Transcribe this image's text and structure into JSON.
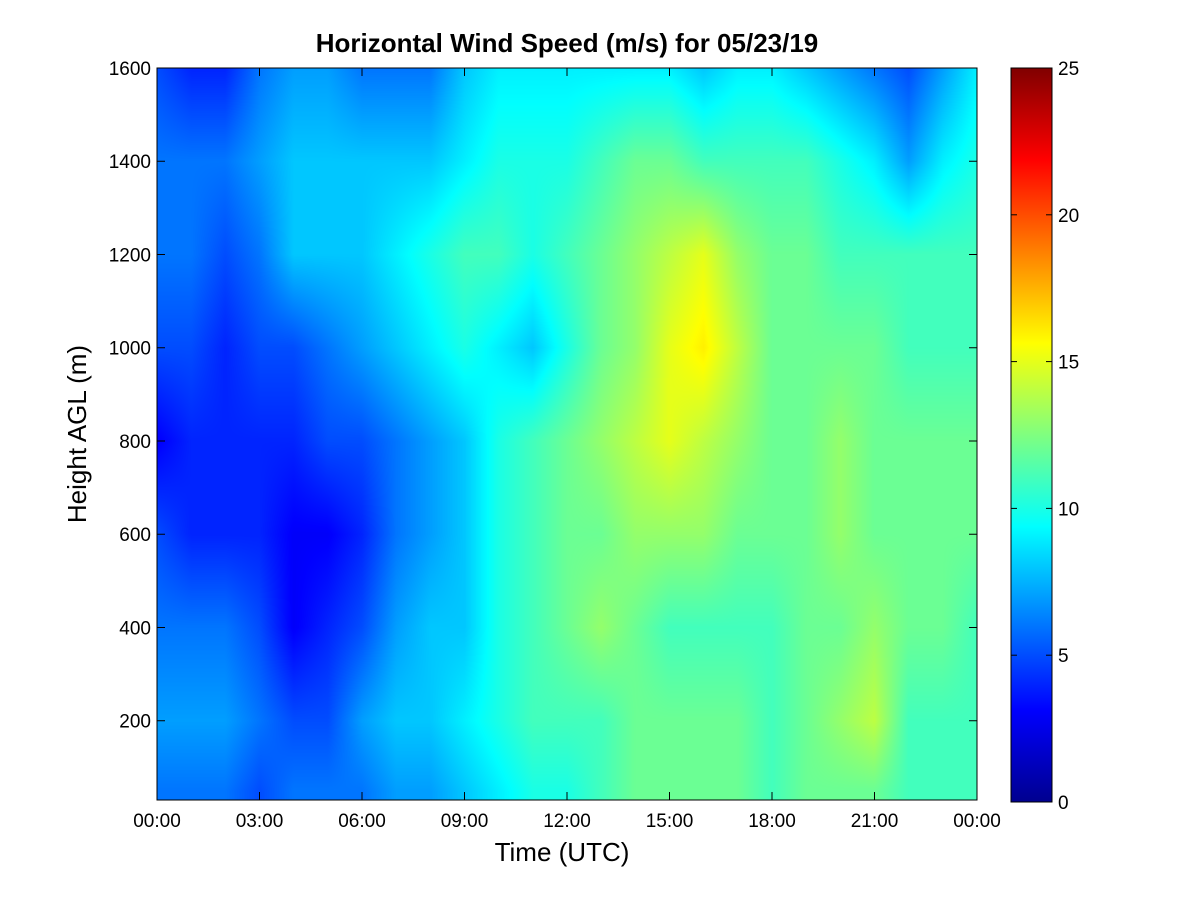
{
  "chart_data": {
    "type": "heatmap",
    "title": "Horizontal Wind Speed (m/s) for 05/23/19",
    "xlabel": "Time (UTC)",
    "ylabel": "Height AGL (m)",
    "x_ticks": [
      "00:00",
      "03:00",
      "06:00",
      "09:00",
      "12:00",
      "15:00",
      "18:00",
      "21:00",
      "00:00"
    ],
    "x_tick_hours": [
      0,
      3,
      6,
      9,
      12,
      15,
      18,
      21,
      24
    ],
    "xlim_hours": [
      0,
      24
    ],
    "y_ticks": [
      200,
      400,
      600,
      800,
      1000,
      1200,
      1400,
      1600
    ],
    "ylim": [
      30,
      1600
    ],
    "colorbar": {
      "colormap": "jet",
      "range": [
        0,
        25
      ],
      "ticks": [
        0,
        5,
        10,
        15,
        20,
        25
      ],
      "tick_labels": [
        "0",
        "5",
        "10",
        "15",
        "20",
        "25"
      ]
    },
    "grid": false,
    "time_hours": [
      0,
      1,
      2,
      3,
      4,
      5,
      6,
      7,
      8,
      9,
      10,
      11,
      12,
      13,
      14,
      15,
      16,
      17,
      18,
      19,
      20,
      21,
      22,
      23,
      24
    ],
    "heights_m": [
      50,
      200,
      400,
      600,
      800,
      1000,
      1200,
      1400,
      1600
    ],
    "values": [
      [
        6,
        6,
        6,
        5,
        6,
        6,
        6,
        7,
        7,
        8,
        9,
        10,
        10,
        11,
        12,
        12,
        12,
        12,
        11,
        12,
        12,
        12,
        11,
        11,
        11
      ],
      [
        7,
        7,
        7,
        6,
        5,
        5,
        7,
        8,
        8,
        9,
        10,
        11,
        11,
        11,
        12,
        12,
        12,
        12,
        11,
        12,
        13,
        14,
        11,
        11,
        11
      ],
      [
        6,
        6,
        6,
        5,
        3,
        4,
        5,
        7,
        8,
        8,
        10,
        11,
        12,
        13,
        12,
        11,
        11,
        11,
        11,
        12,
        12,
        13,
        12,
        12,
        11
      ],
      [
        5,
        4,
        4,
        4,
        3,
        3,
        4,
        6,
        7,
        8,
        10,
        11,
        12,
        12,
        13,
        13,
        13,
        12,
        12,
        12,
        13,
        12,
        12,
        12,
        12
      ],
      [
        3,
        4,
        4,
        4,
        4,
        5,
        5,
        6,
        7,
        8,
        10,
        11,
        12,
        13,
        14,
        15,
        14,
        13,
        12,
        12,
        13,
        12,
        12,
        12,
        12
      ],
      [
        5,
        5,
        4,
        5,
        5,
        6,
        7,
        8,
        9,
        10,
        9,
        8,
        10,
        12,
        13,
        15,
        16,
        14,
        12,
        12,
        12,
        12,
        11,
        11,
        11
      ],
      [
        6,
        6,
        5,
        6,
        8,
        8,
        8,
        9,
        10,
        11,
        11,
        10,
        11,
        12,
        13,
        14,
        15,
        13,
        12,
        12,
        11,
        11,
        11,
        11,
        11
      ],
      [
        6,
        6,
        6,
        7,
        8,
        8,
        8,
        8,
        8,
        9,
        10,
        10,
        10,
        11,
        12,
        12,
        11,
        11,
        11,
        11,
        10,
        9,
        7,
        9,
        10
      ],
      [
        5,
        4,
        4,
        6,
        7,
        7,
        6,
        6,
        6,
        8,
        9,
        9,
        9,
        9,
        9,
        9,
        8,
        9,
        9,
        8,
        7,
        6,
        5,
        7,
        9
      ]
    ]
  }
}
